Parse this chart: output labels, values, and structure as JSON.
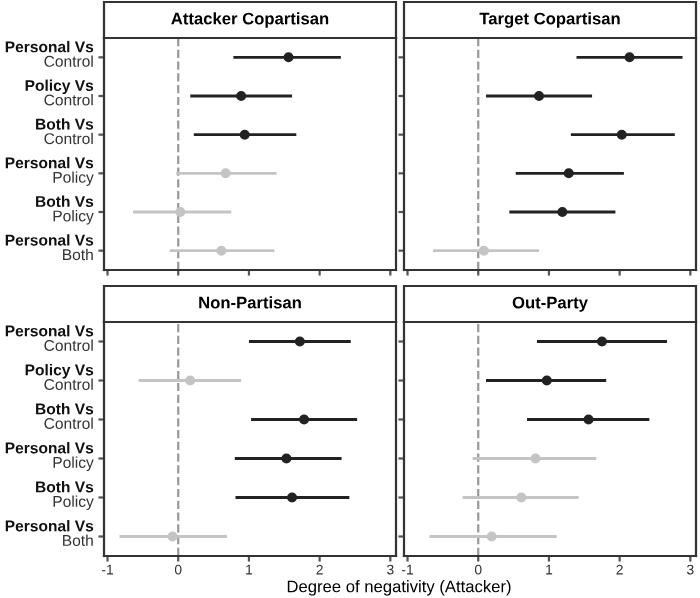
{
  "chart_data": [
    {
      "type": "scatter",
      "title": "Attacker Copartisan",
      "orientation": "horizontal",
      "categories": [
        "Personal Vs\nControl",
        "Policy Vs\nControl",
        "Both Vs\nControl",
        "Personal Vs\nPolicy",
        "Both Vs\nPolicy",
        "Personal Vs\nBoth"
      ],
      "values": [
        1.56,
        0.89,
        0.94,
        0.67,
        0.03,
        0.61
      ],
      "errors": [
        [
          0.78,
          2.3
        ],
        [
          0.17,
          1.61
        ],
        [
          0.22,
          1.67
        ],
        [
          -0.03,
          1.39
        ],
        [
          -0.64,
          0.75
        ],
        [
          -0.12,
          1.36
        ]
      ],
      "colors": [
        "#222222",
        "#222222",
        "#222222",
        "#c4c4c4",
        "#c4c4c4",
        "#c4c4c4"
      ],
      "xlim": [
        -1.05,
        3.08
      ],
      "xticks": [
        -1,
        0,
        1,
        2,
        3
      ],
      "tick_labels": "y",
      "marker": "circle",
      "grid": false,
      "ref_lines": [
        {
          "axis": "x",
          "value": 0,
          "line_style": "dashed",
          "color": "#999999"
        }
      ]
    },
    {
      "type": "scatter",
      "title": "Target Copartisan",
      "orientation": "horizontal",
      "categories": [
        null,
        null,
        null,
        null,
        null,
        null
      ],
      "values": [
        2.14,
        0.86,
        2.03,
        1.28,
        1.19,
        0.08
      ],
      "errors": [
        [
          1.39,
          2.89
        ],
        [
          0.11,
          1.61
        ],
        [
          1.31,
          2.78
        ],
        [
          0.53,
          2.06
        ],
        [
          0.44,
          1.94
        ],
        [
          -0.64,
          0.86
        ]
      ],
      "colors": [
        "#222222",
        "#222222",
        "#222222",
        "#222222",
        "#222222",
        "#c4c4c4"
      ],
      "xlim": [
        -1.05,
        3.08
      ],
      "xticks": [
        -1,
        0,
        1,
        2,
        3
      ],
      "tick_labels": false,
      "marker": "circle",
      "grid": false,
      "ref_lines": [
        {
          "axis": "x",
          "value": 0,
          "line_style": "dashed",
          "color": "#999999"
        }
      ]
    },
    {
      "type": "scatter",
      "title": "Non-Partisan",
      "xlabel": "Degree of negativity (Attacker)",
      "orientation": "horizontal",
      "categories": [
        "Personal Vs\nControl",
        "Policy Vs\nControl",
        "Both Vs\nControl",
        "Personal Vs\nPolicy",
        "Both Vs\nPolicy",
        "Personal Vs\nBoth"
      ],
      "values": [
        1.72,
        0.17,
        1.78,
        1.53,
        1.61,
        -0.08
      ],
      "errors": [
        [
          1.0,
          2.44
        ],
        [
          -0.56,
          0.89
        ],
        [
          1.03,
          2.53
        ],
        [
          0.8,
          2.31
        ],
        [
          0.81,
          2.42
        ],
        [
          -0.83,
          0.69
        ]
      ],
      "colors": [
        "#222222",
        "#c4c4c4",
        "#222222",
        "#222222",
        "#222222",
        "#c4c4c4"
      ],
      "xlim": [
        -1.05,
        3.08
      ],
      "xticks": [
        -1,
        0,
        1,
        2,
        3
      ],
      "marker": "circle",
      "grid": false,
      "ref_lines": [
        {
          "axis": "x",
          "value": 0,
          "line_style": "dashed",
          "color": "#999999"
        }
      ]
    },
    {
      "type": "scatter",
      "title": "Out-Party",
      "orientation": "horizontal",
      "categories": [
        null,
        null,
        null,
        null,
        null,
        null
      ],
      "values": [
        1.75,
        0.97,
        1.56,
        0.81,
        0.61,
        0.19
      ],
      "errors": [
        [
          0.83,
          2.67
        ],
        [
          0.11,
          1.81
        ],
        [
          0.69,
          2.42
        ],
        [
          -0.08,
          1.67
        ],
        [
          -0.22,
          1.42
        ],
        [
          -0.69,
          1.11
        ]
      ],
      "colors": [
        "#222222",
        "#222222",
        "#222222",
        "#c4c4c4",
        "#c4c4c4",
        "#c4c4c4"
      ],
      "xlim": [
        -1.05,
        3.08
      ],
      "xticks": [
        -1,
        0,
        1,
        2,
        3
      ],
      "tick_labels": "x",
      "marker": "circle",
      "grid": false,
      "ref_lines": [
        {
          "axis": "x",
          "value": 0,
          "line_style": "dashed",
          "color": "#999999"
        }
      ]
    }
  ]
}
